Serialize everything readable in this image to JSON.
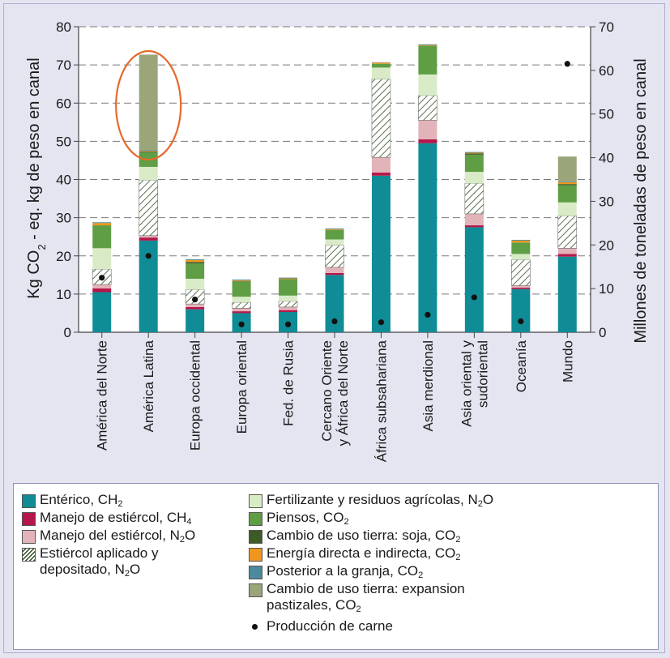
{
  "chart_data": {
    "type": "bar",
    "stacked": true,
    "ylabel": "Kg CO<2> - eq. kg de peso en canal",
    "y2label": "Millones de toneladas de peso en canal",
    "ylim": [
      0,
      80
    ],
    "y2lim": [
      0,
      70
    ],
    "yticks": [
      "0",
      "10",
      "20",
      "30",
      "40",
      "50",
      "60",
      "70",
      "80"
    ],
    "y2ticks": [
      "0",
      "10",
      "20",
      "30",
      "40",
      "50",
      "60",
      "70"
    ],
    "grid": "horizontal-dashed",
    "categories": [
      "América del Norte",
      "América Latina",
      "Europa occidental",
      "Europa oriental",
      "Fed. de Rusia",
      "Cercano Oriente\ny África del Norte",
      "África subsahariana",
      "Asia merdional",
      "Asia oriental y\nsudoriental",
      "Oceanía",
      "Mundo"
    ],
    "series": [
      {
        "name": "Entérico, CH<2>",
        "color": "#0f8c96",
        "pattern": "none",
        "values": [
          10.5,
          24,
          6,
          5,
          5.3,
          15,
          41,
          49.5,
          27.5,
          11.3,
          19.8
        ]
      },
      {
        "name": "Manejo de estiércol, CH<4>",
        "color": "#b5174a",
        "pattern": "none",
        "values": [
          1,
          0.8,
          0.6,
          0.5,
          0.5,
          0.5,
          0.8,
          1,
          0.5,
          0.4,
          0.7
        ]
      },
      {
        "name": "Manejo del estiércol, N<2>O",
        "color": "#e2b3b8",
        "pattern": "none",
        "values": [
          1,
          0.5,
          0.8,
          0.8,
          0.8,
          1.5,
          4,
          5,
          3,
          0.5,
          1.5
        ]
      },
      {
        "name": "Estiércol aplicado y depositado, N<2>O",
        "color": "#ffffff",
        "pattern": "hatch",
        "values": [
          4,
          14.5,
          3.8,
          1.5,
          1.5,
          5.8,
          20.5,
          6.5,
          8,
          6.8,
          8.5
        ]
      },
      {
        "name": "Fertilizante y residuos agrícolas, N<2>O",
        "color": "#d9ebc6",
        "pattern": "none",
        "values": [
          5.5,
          3.5,
          2.8,
          1.5,
          1.5,
          1.5,
          3,
          5.5,
          3,
          1.5,
          3.5
        ]
      },
      {
        "name": "Piensos, CO<2>",
        "color": "#5f9e45",
        "pattern": "none",
        "values": [
          6,
          3.8,
          4,
          4,
          4.3,
          2.5,
          1,
          7.5,
          4.5,
          3,
          4.5
        ]
      },
      {
        "name": "Cambio de uso tierra: soja, CO<2>",
        "color": "#3e5b27",
        "pattern": "none",
        "values": [
          0,
          0.2,
          0.4,
          0.1,
          0,
          0,
          0,
          0,
          0.3,
          0,
          0.3
        ]
      },
      {
        "name": "Energía directa e indirecta, CO<2>",
        "color": "#f0961e",
        "pattern": "none",
        "values": [
          0.6,
          0.2,
          0.5,
          0.2,
          0.2,
          0.2,
          0.3,
          0.2,
          0.2,
          0.5,
          0.5
        ]
      },
      {
        "name": "Posterior a la granja, CO<2>",
        "color": "#4a8a9c",
        "pattern": "none",
        "values": [
          0.2,
          0.2,
          0.2,
          0.2,
          0.2,
          0.2,
          0.1,
          0.2,
          0.2,
          0.2,
          0.2
        ]
      },
      {
        "name": "Cambio de uso tierra: expansion pastizales, CO<2>",
        "color": "#9aa57a",
        "pattern": "none",
        "values": [
          0,
          25,
          0,
          0,
          0,
          0,
          0,
          0,
          0,
          0,
          6.5
        ]
      }
    ],
    "production": {
      "name": "Producción de carne",
      "axis": "right",
      "values": [
        12.5,
        17.5,
        7.5,
        1.8,
        1.8,
        2.5,
        2.3,
        4,
        8,
        2.5,
        61.5
      ]
    },
    "highlight": {
      "category": "América Latina",
      "color": "#e56a2c"
    }
  },
  "colors": {
    "grid": "#7a7a7a",
    "axis": "#444444",
    "text": "#1a1a1a",
    "background": "#e4e5f1",
    "plot_background": "#ffffff"
  }
}
